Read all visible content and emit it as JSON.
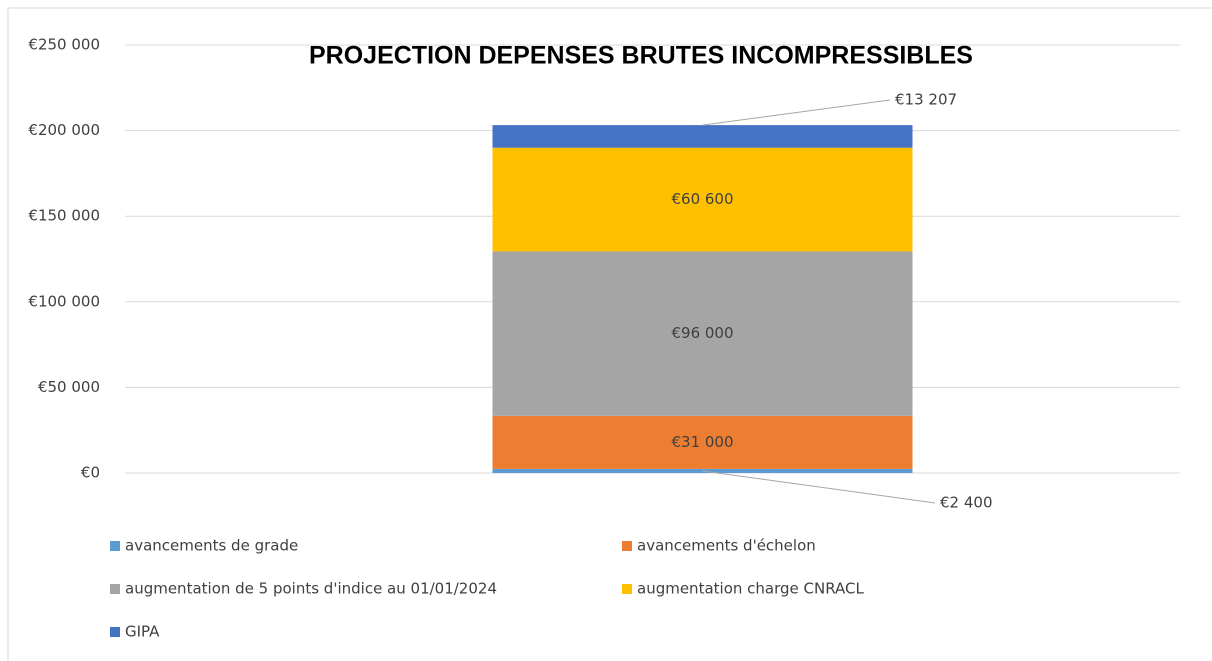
{
  "chart_data": {
    "type": "stacked_bar",
    "title": "PROJECTION DEPENSES BRUTES INCOMPRESSIBLES",
    "categories": [
      null
    ],
    "series": [
      {
        "name": "avancements de grade",
        "color": "#5b9bd5",
        "values": [
          2400
        ],
        "value_labels": [
          "€2 400"
        ]
      },
      {
        "name": "avancements d'échelon",
        "color": "#ed7d31",
        "values": [
          31000
        ],
        "value_labels": [
          "€31 000"
        ]
      },
      {
        "name": "augmentation de 5 points d'indice au 01/01/2024",
        "color": "#a5a5a5",
        "values": [
          96000
        ],
        "value_labels": [
          "€96 000"
        ]
      },
      {
        "name": "augmentation charge CNRACL",
        "color": "#ffc000",
        "values": [
          60600
        ],
        "value_labels": [
          "€60 600"
        ]
      },
      {
        "name": "GIPA",
        "color": "#4472c4",
        "values": [
          13207
        ],
        "value_labels": [
          "€13 207"
        ]
      }
    ],
    "ylim": [
      0,
      250000
    ],
    "yticks": [
      {
        "value": 0,
        "label": "€0"
      },
      {
        "value": 50000,
        "label": "€50 000"
      },
      {
        "value": 100000,
        "label": "€100 000"
      },
      {
        "value": 150000,
        "label": "€150 000"
      },
      {
        "value": 200000,
        "label": "€200 000"
      },
      {
        "value": 250000,
        "label": "€250 000"
      }
    ],
    "grid": true,
    "legend": "bottom"
  }
}
